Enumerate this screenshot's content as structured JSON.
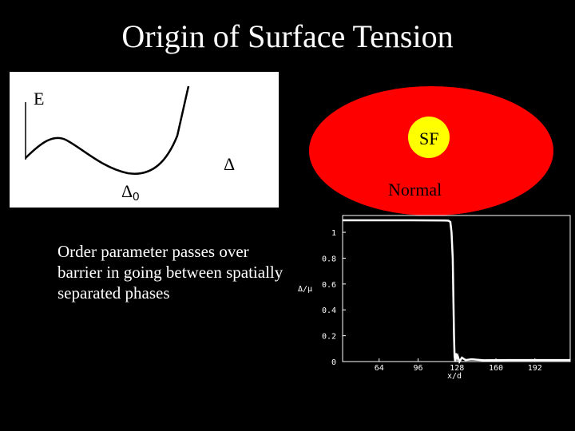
{
  "title": "Origin of Surface Tension",
  "energy_plot": {
    "y_label": "E",
    "x_label": "Δ",
    "minimum_label_symbol": "Δ",
    "minimum_label_subscript": "0"
  },
  "phase_diagram": {
    "inner_label": "SF",
    "outer_label": "Normal",
    "colors": {
      "outer": "#ff0000",
      "inner": "#ffff00"
    }
  },
  "caption": "Order parameter passes over barrier in going between spatially separated phases",
  "chart_data": {
    "type": "line",
    "ylabel": "Δ/μ",
    "xlabel": "x/d",
    "x_ticks": [
      "64",
      "96",
      "128",
      "160",
      "192"
    ],
    "y_ticks": [
      "0",
      "0.2",
      "0.4",
      "0.6",
      "0.8",
      "1"
    ],
    "xlim": [
      34,
      221
    ],
    "ylim": [
      0,
      1.13
    ],
    "series": [
      {
        "points": [
          [
            34,
            1.093
          ],
          [
            60,
            1.093
          ],
          [
            90,
            1.093
          ],
          [
            118,
            1.092
          ],
          [
            121,
            1.09
          ],
          [
            122.5,
            1.08
          ],
          [
            123.5,
            1.0
          ],
          [
            124.5,
            0.8
          ],
          [
            125,
            0.5
          ],
          [
            125.5,
            0.2
          ],
          [
            126,
            0.04
          ],
          [
            126.5,
            0.0
          ],
          [
            127,
            0.065
          ],
          [
            127.5,
            0.02
          ],
          [
            128.5,
            0.045
          ],
          [
            130,
            0.0
          ],
          [
            132,
            0.03
          ],
          [
            135,
            0.012
          ],
          [
            140,
            0.018
          ],
          [
            150,
            0.01
          ],
          [
            170,
            0.012
          ],
          [
            200,
            0.012
          ],
          [
            221,
            0.012
          ]
        ]
      }
    ]
  }
}
